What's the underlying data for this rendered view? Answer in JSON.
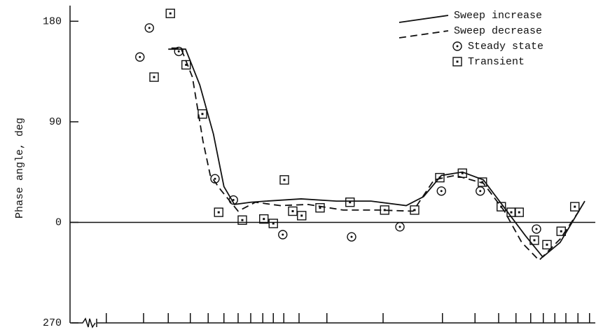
{
  "chart_data": {
    "type": "line",
    "y_label": "Phase angle, deg",
    "xlim": [
      0,
      100
    ],
    "xticks": [
      6.9,
      14,
      18.7,
      22.9,
      26.3,
      29.3,
      32,
      34.4,
      36.7,
      38.7,
      40.7,
      43.6,
      48.9,
      59.6,
      70.9,
      77.1,
      81.6,
      84.9,
      87.7,
      90.1,
      92.3,
      94.4,
      96.7,
      98.9
    ],
    "ylim": [
      -90,
      194
    ],
    "yticks": [
      180,
      90,
      0,
      {
        "value": -90,
        "label": "270"
      }
    ],
    "color": "#111111",
    "series": [
      {
        "name": "Sweep increase",
        "style": "solid",
        "x": [
          18.7,
          22,
          24.7,
          27.3,
          29.3,
          31.3,
          34.4,
          37.3,
          44,
          50.7,
          57.3,
          64,
          67.3,
          70.7,
          74.7,
          78.7,
          82.7,
          86.7,
          90,
          93.3,
          98
        ],
        "values": [
          155,
          155,
          123,
          79,
          32,
          16,
          18,
          19,
          21,
          19,
          19,
          15,
          23,
          42,
          45,
          38,
          13,
          -12,
          -31,
          -18,
          19
        ]
      },
      {
        "name": "Sweep decrease",
        "style": "dashed",
        "x": [
          19.3,
          21.1,
          23.3,
          25.3,
          26.7,
          28.7,
          32,
          35.3,
          40,
          45.3,
          52,
          58.7,
          65.3,
          69.3,
          73.3,
          78.7,
          82.7,
          86,
          89.3,
          93.3,
          97.3
        ],
        "values": [
          156,
          156,
          130,
          73,
          42,
          29,
          10,
          18,
          15,
          16,
          11,
          11,
          10,
          38,
          42,
          35,
          10,
          -18,
          -34,
          -15,
          13
        ]
      },
      {
        "name": "Steady state",
        "style": "circle",
        "x": [
          13.3,
          15.1,
          20.7,
          27.6,
          31.1,
          40.5,
          53.6,
          62.8,
          70.7,
          78.1,
          88.8
        ],
        "values": [
          148,
          174,
          153,
          39,
          20,
          -11,
          -13,
          -4,
          28,
          28,
          -6
        ]
      },
      {
        "name": "Transient",
        "style": "square",
        "x": [
          19.1,
          16,
          22.1,
          25.2,
          28.3,
          32.8,
          36.9,
          38.7,
          40.8,
          42.4,
          44.1,
          47.6,
          53.3,
          59.9,
          65.6,
          70.4,
          74.7,
          78.5,
          82.1,
          84,
          85.5,
          88.4,
          90.8,
          93.5,
          96.1
        ],
        "values": [
          187,
          130,
          141,
          97,
          9,
          2,
          3,
          -1,
          38,
          10,
          6,
          13,
          18,
          11,
          11,
          40,
          44,
          36,
          14,
          9,
          9,
          -16,
          -20,
          -8,
          14
        ]
      }
    ]
  }
}
